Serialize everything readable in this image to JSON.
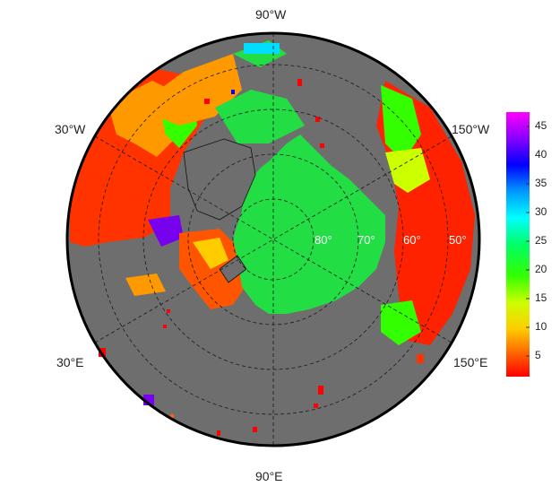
{
  "map": {
    "projection": "north polar stereographic",
    "land_color": "#6e6e6e",
    "sea_ice_color": "#22dd44",
    "background": "#ffffff"
  },
  "lon_labels": {
    "top": "90°W",
    "bottom": "90°E",
    "upper_left": "30°W",
    "upper_right": "150°W",
    "lower_left": "30°E",
    "lower_right": "150°E"
  },
  "lat_labels": [
    "80°",
    "70°",
    "60°",
    "50°"
  ],
  "colorbar": {
    "ticks": [
      "45",
      "40",
      "35",
      "30",
      "25",
      "20",
      "15",
      "10",
      "5"
    ],
    "min": 1,
    "max": 47,
    "colors_top_to_bottom": [
      "#ff00ff",
      "#8800ff",
      "#0000ff",
      "#0099ff",
      "#00ffff",
      "#00ff66",
      "#33ff00",
      "#ccff00",
      "#ffcc00",
      "#ff6600",
      "#ff0000"
    ]
  }
}
